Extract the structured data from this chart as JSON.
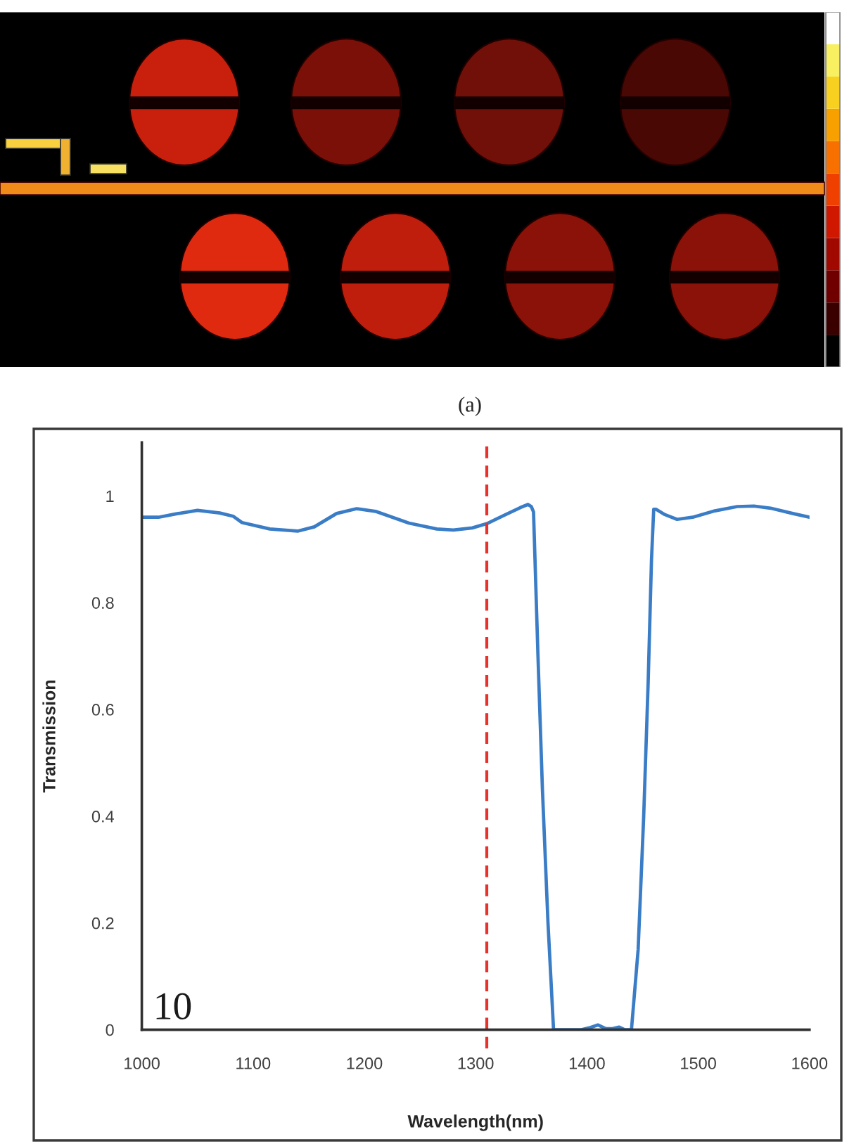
{
  "chart_data": {
    "type": "line",
    "xlabel": "Wavelength(nm)",
    "ylabel": "Transmission",
    "annotations": [
      "(a)",
      "10"
    ],
    "x": [
      1000,
      1015,
      1030,
      1050,
      1070,
      1082,
      1090,
      1115,
      1140,
      1155,
      1175,
      1193,
      1210,
      1240,
      1265,
      1280,
      1297,
      1310,
      1325,
      1340,
      1347,
      1350,
      1352,
      1356,
      1360,
      1365,
      1370,
      1395,
      1403,
      1410,
      1417,
      1423,
      1429,
      1434,
      1440,
      1446,
      1451,
      1455,
      1458,
      1460,
      1462,
      1470,
      1481,
      1495,
      1515,
      1535,
      1550,
      1565,
      1585,
      1600
    ],
    "series": [
      {
        "color": "#3a7dc6",
        "values": [
          0.96,
          0.96,
          0.966,
          0.973,
          0.968,
          0.962,
          0.95,
          0.938,
          0.934,
          0.942,
          0.967,
          0.976,
          0.971,
          0.949,
          0.938,
          0.936,
          0.94,
          0.948,
          0.963,
          0.978,
          0.984,
          0.98,
          0.97,
          0.7,
          0.45,
          0.2,
          0,
          0,
          0.004,
          0.009,
          0.002,
          0.002,
          0.005,
          0,
          0,
          0.15,
          0.4,
          0.65,
          0.88,
          0.975,
          0.975,
          0.965,
          0.956,
          0.96,
          0.972,
          0.98,
          0.981,
          0.977,
          0.967,
          0.96
        ]
      }
    ],
    "xlim": [
      1000,
      1600
    ],
    "xticks": [
      1000,
      1100,
      1200,
      1300,
      1400,
      1500,
      1600
    ],
    "ylim": [
      0,
      1.1
    ],
    "yticks": [
      0,
      0.2,
      0.4,
      0.6,
      0.8,
      1
    ],
    "ref_lines": [
      {
        "axis": "x",
        "value": 1310,
        "color": "#e8312a",
        "line_style": "dashed"
      }
    ]
  }
}
